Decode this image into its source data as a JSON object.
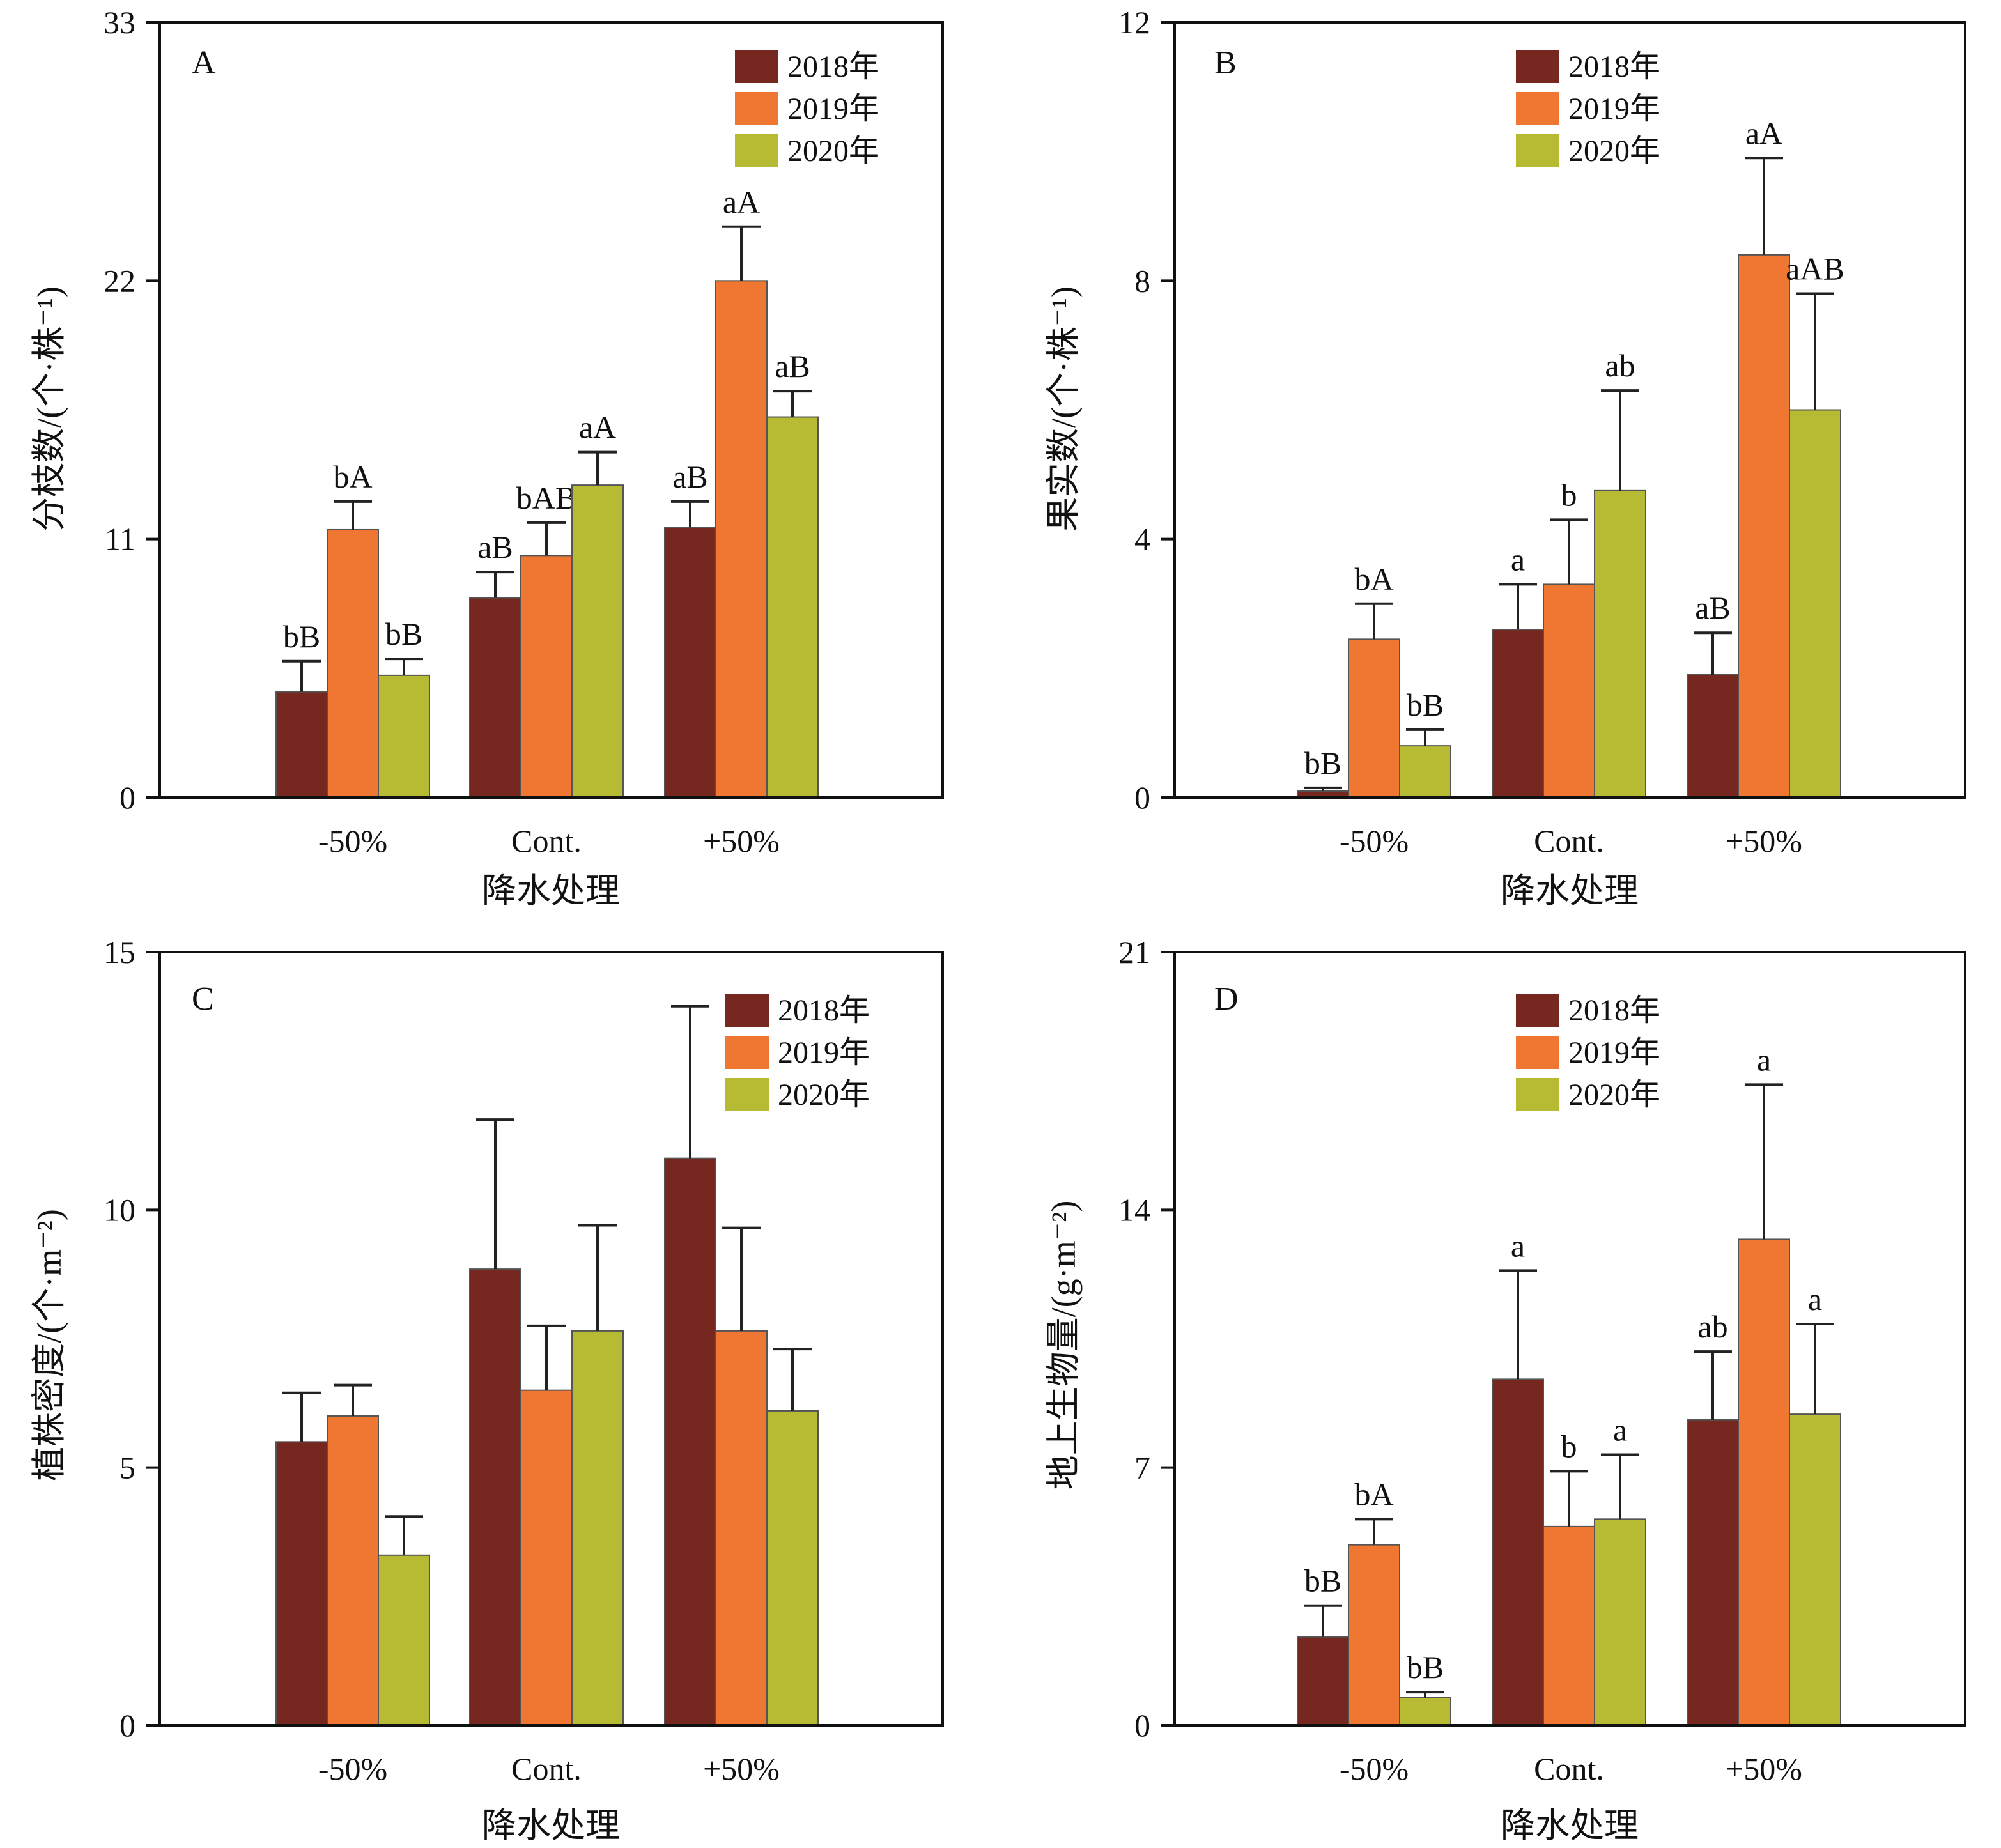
{
  "chart_data": [
    {
      "type": "bar",
      "panel": "A",
      "ylabel": "分枝数/(个·株⁻¹)",
      "xlabel": "降水处理",
      "categories": [
        "-50%",
        "Cont.",
        "+50%"
      ],
      "ylim": [
        0,
        33
      ],
      "yticks": [
        0,
        11,
        22,
        33
      ],
      "series": [
        {
          "name": "2018年",
          "values": [
            4.5,
            8.5,
            11.5
          ],
          "errors": [
            1.3,
            1.1,
            1.1
          ]
        },
        {
          "name": "2019年",
          "values": [
            11.4,
            10.3,
            22.0
          ],
          "errors": [
            1.2,
            1.4,
            2.3
          ]
        },
        {
          "name": "2020年",
          "values": [
            5.2,
            13.3,
            16.2
          ],
          "errors": [
            0.7,
            1.4,
            1.1
          ]
        }
      ],
      "annotations": [
        [
          "bB",
          "bA",
          "bB"
        ],
        [
          "aB",
          "bAB",
          "aA"
        ],
        [
          "aB",
          "aA",
          "aB"
        ]
      ],
      "legend_position": "top-right"
    },
    {
      "type": "bar",
      "panel": "B",
      "ylabel": "果实数/(个·株⁻¹)",
      "xlabel": "降水处理",
      "categories": [
        "-50%",
        "Cont.",
        "+50%"
      ],
      "ylim": [
        0,
        12
      ],
      "yticks": [
        0,
        4,
        8,
        12
      ],
      "series": [
        {
          "name": "2018年",
          "values": [
            0.1,
            2.6,
            1.9
          ],
          "errors": [
            0.05,
            0.7,
            0.65
          ]
        },
        {
          "name": "2019年",
          "values": [
            2.45,
            3.3,
            8.4
          ],
          "errors": [
            0.55,
            1.0,
            1.5
          ]
        },
        {
          "name": "2020年",
          "values": [
            0.8,
            4.75,
            6.0
          ],
          "errors": [
            0.25,
            1.55,
            1.8
          ]
        }
      ],
      "annotations": [
        [
          "bB",
          "bA",
          "bB"
        ],
        [
          "a",
          "b",
          "ab"
        ],
        [
          "aB",
          "aA",
          "aAB"
        ]
      ],
      "legend_position": "top-center"
    },
    {
      "type": "bar",
      "panel": "C",
      "ylabel": "植株密度/(个·m⁻²)",
      "xlabel": "降水处理",
      "categories": [
        "-50%",
        "Cont.",
        "+50%"
      ],
      "ylim": [
        0,
        15
      ],
      "yticks": [
        0,
        5,
        10,
        15
      ],
      "series": [
        {
          "name": "2018年",
          "values": [
            5.5,
            8.85,
            11.0
          ],
          "errors": [
            0.95,
            2.9,
            2.95
          ]
        },
        {
          "name": "2019年",
          "values": [
            6.0,
            6.5,
            7.65
          ],
          "errors": [
            0.6,
            1.25,
            2.0
          ]
        },
        {
          "name": "2020年",
          "values": [
            3.3,
            7.65,
            6.1
          ],
          "errors": [
            0.75,
            2.05,
            1.2
          ]
        }
      ],
      "annotations": [],
      "legend_position": "top-right"
    },
    {
      "type": "bar",
      "panel": "D",
      "ylabel": "地上生物量/(g·m⁻²)",
      "xlabel": "降水处理",
      "categories": [
        "-50%",
        "Cont.",
        "+50%"
      ],
      "ylim": [
        0,
        21
      ],
      "yticks": [
        0,
        7,
        14,
        21
      ],
      "series": [
        {
          "name": "2018年",
          "values": [
            2.4,
            9.4,
            8.3
          ],
          "errors": [
            0.85,
            2.95,
            1.85
          ]
        },
        {
          "name": "2019年",
          "values": [
            4.9,
            5.4,
            13.2
          ],
          "errors": [
            0.7,
            1.5,
            4.2
          ]
        },
        {
          "name": "2020年",
          "values": [
            0.75,
            5.6,
            8.45
          ],
          "errors": [
            0.15,
            1.75,
            2.45
          ]
        }
      ],
      "annotations": [
        [
          "bB",
          "bA",
          "bB"
        ],
        [
          "a",
          "b",
          "a"
        ],
        [
          "ab",
          "a",
          "a"
        ]
      ],
      "legend_position": "top-center"
    }
  ],
  "colors": {
    "series": [
      "#76271f",
      "#ef7731",
      "#b7bb33"
    ],
    "axis": "#111111",
    "error_bar": "#222222"
  }
}
